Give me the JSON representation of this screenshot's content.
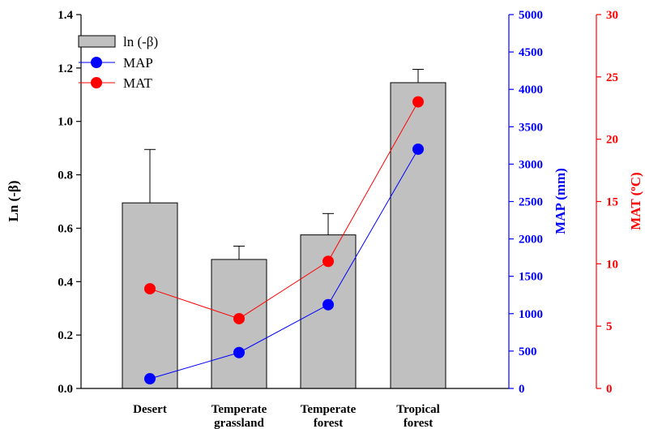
{
  "chart_data": {
    "type": "bar",
    "categories": [
      [
        "Desert"
      ],
      [
        "Temperate",
        "grassland"
      ],
      [
        "Temperate",
        "forest"
      ],
      [
        "Tropical",
        "forest"
      ]
    ],
    "series": [
      {
        "name": "ln (-β)",
        "kind": "bar",
        "axis": "left",
        "values": [
          0.695,
          0.483,
          0.575,
          1.145
        ],
        "errors": [
          0.2,
          0.05,
          0.08,
          0.05
        ],
        "color": "#c0c0c0"
      },
      {
        "name": "MAP",
        "kind": "line",
        "axis": "right1",
        "values": [
          130,
          480,
          1120,
          3200
        ],
        "color": "#0000ff"
      },
      {
        "name": "MAT",
        "kind": "line",
        "axis": "right2",
        "values": [
          8,
          5.6,
          10.2,
          23
        ],
        "color": "#ff0000"
      }
    ],
    "axes": {
      "left": {
        "label": "Ln (-β)",
        "ylim": [
          0,
          1.4
        ],
        "ticks": [
          "0.0",
          "0.2",
          "0.4",
          "0.6",
          "0.8",
          "1.0",
          "1.2",
          "1.4"
        ],
        "color": "#000000"
      },
      "right1": {
        "label": "MAP (mm)",
        "ylim": [
          0,
          5000
        ],
        "ticks": [
          "0",
          "500",
          "1000",
          "1500",
          "2000",
          "2500",
          "3000",
          "3500",
          "4000",
          "4500",
          "5000"
        ],
        "color": "#0000ff"
      },
      "right2": {
        "label": "MAT (°C)",
        "label_main": "MAT (",
        "label_sup": "o",
        "label_end": "C)",
        "ylim": [
          0,
          30
        ],
        "ticks": [
          "0",
          "5",
          "10",
          "15",
          "20",
          "25",
          "30"
        ],
        "color": "#ff0000"
      }
    },
    "legend": {
      "position": "top-left",
      "entries": [
        "ln (-β)",
        "MAP",
        "MAT"
      ]
    }
  }
}
